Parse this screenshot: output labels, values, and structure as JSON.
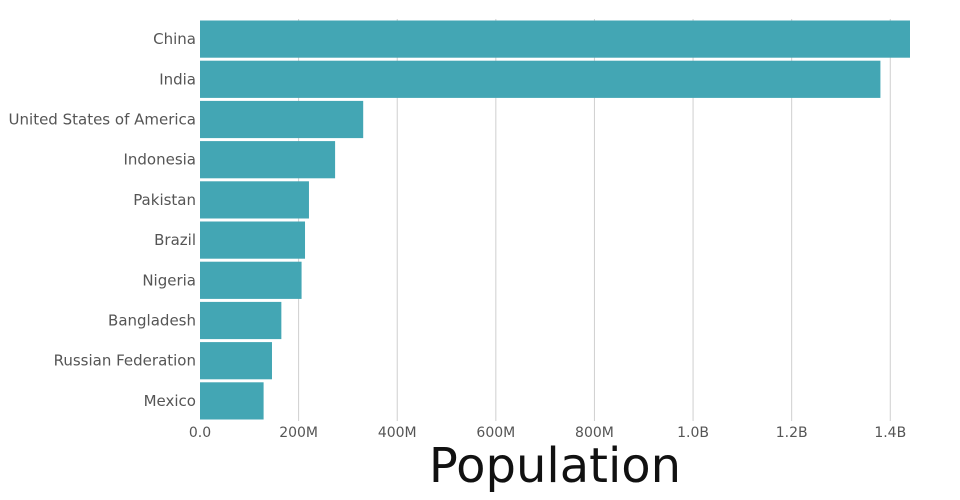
{
  "chart_data": {
    "type": "bar",
    "orientation": "horizontal",
    "categories": [
      "China",
      "India",
      "United States of America",
      "Indonesia",
      "Pakistan",
      "Brazil",
      "Nigeria",
      "Bangladesh",
      "Russian Federation",
      "Mexico"
    ],
    "values": [
      1440000000,
      1380000000,
      331000000,
      274000000,
      221000000,
      213000000,
      206000000,
      165000000,
      146000000,
      129000000
    ],
    "xlabel": "Population",
    "ylabel": "",
    "xlim": [
      0,
      1440000000
    ],
    "xticks": [
      0,
      200000000,
      400000000,
      600000000,
      800000000,
      1000000000,
      1200000000,
      1400000000
    ],
    "xtick_labels": [
      "0.0",
      "200M",
      "400M",
      "600M",
      "800M",
      "1.0B",
      "1.2B",
      "1.4B"
    ],
    "grid": "vertical",
    "bar_color": "#43a6b4"
  }
}
